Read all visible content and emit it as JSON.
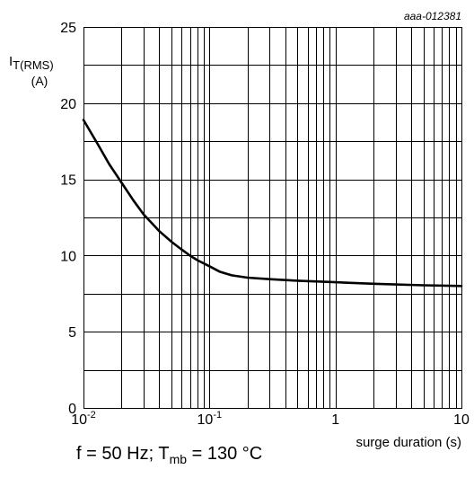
{
  "figure_id": "aaa-012381",
  "caption": {
    "text_before": "f = 50 Hz; T",
    "subscript": "mb",
    "text_after": " = 130 °C"
  },
  "chart_data": {
    "type": "line",
    "title": "",
    "ylabel": {
      "main": "I",
      "subscript": "T(RMS)",
      "unit": "(A)"
    },
    "xlabel": "surge duration (s)",
    "xscale": "log",
    "xlim": [
      0.01,
      10
    ],
    "ylim": [
      0,
      25
    ],
    "grid": true,
    "y_ticks": [
      {
        "value": 0,
        "label": "0"
      },
      {
        "value": 5,
        "label": "5"
      },
      {
        "value": 10,
        "label": "10"
      },
      {
        "value": 15,
        "label": "15"
      },
      {
        "value": 20,
        "label": "20"
      },
      {
        "value": 25,
        "label": "25"
      }
    ],
    "x_ticks": [
      {
        "value": 0.01,
        "base": "10",
        "exp": "-2"
      },
      {
        "value": 0.1,
        "base": "10",
        "exp": "-1"
      },
      {
        "value": 1,
        "base": "1",
        "exp": ""
      },
      {
        "value": 10,
        "base": "10",
        "exp": ""
      }
    ],
    "series": [
      {
        "x": [
          0.01,
          0.013,
          0.016,
          0.02,
          0.025,
          0.03,
          0.04,
          0.05,
          0.06,
          0.07,
          0.08,
          0.1,
          0.12,
          0.15,
          0.2,
          0.3,
          0.5,
          1,
          2,
          5,
          10
        ],
        "y": [
          18.9,
          17.3,
          16.0,
          14.8,
          13.6,
          12.7,
          11.6,
          10.9,
          10.4,
          10.0,
          9.7,
          9.3,
          8.95,
          8.7,
          8.55,
          8.45,
          8.35,
          8.25,
          8.15,
          8.05,
          8.0
        ]
      }
    ]
  }
}
